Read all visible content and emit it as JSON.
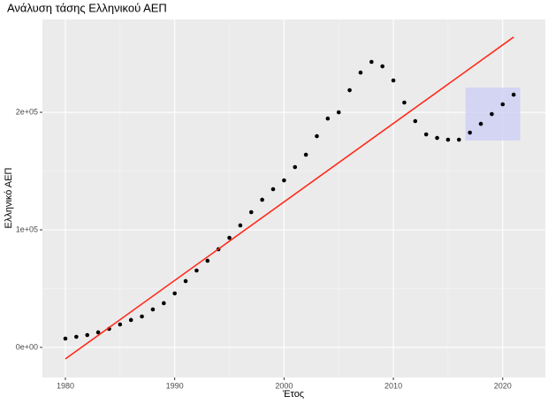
{
  "chart_data": {
    "type": "scatter",
    "title": "Ανάλυση τάσης Ελληνικού ΑΕΠ",
    "x_label": "Έτος",
    "y_label": "Ελληνικό ΑΕΠ",
    "x": [
      1980,
      1981,
      1982,
      1983,
      1984,
      1985,
      1986,
      1987,
      1988,
      1989,
      1990,
      1991,
      1992,
      1993,
      1994,
      1995,
      1996,
      1997,
      1998,
      1999,
      2000,
      2001,
      2002,
      2003,
      2004,
      2005,
      2006,
      2007,
      2008,
      2009,
      2010,
      2011,
      2012,
      2013,
      2014,
      2015,
      2016,
      2017,
      2018,
      2019,
      2020,
      2021
    ],
    "values": [
      7500,
      9000,
      10500,
      12800,
      15800,
      19500,
      23300,
      26300,
      32300,
      37600,
      45900,
      56400,
      65400,
      73700,
      83500,
      93200,
      103800,
      115000,
      125600,
      134600,
      142100,
      153400,
      163900,
      179700,
      194700,
      200000,
      218800,
      233800,
      242900,
      239100,
      227100,
      208300,
      192500,
      181200,
      178200,
      176700,
      176700,
      182700,
      190200,
      198500,
      206800,
      215000
    ],
    "color": "#000000",
    "trend": {
      "x": [
        1980,
        2021
      ],
      "values": [
        -9800,
        264000
      ],
      "color": "#ff2a1a"
    },
    "highlight": {
      "xmin": 2016.6,
      "xmax": 2021.6,
      "ymin": 176000,
      "ymax": 221000,
      "color": "#ccccf5"
    },
    "xlim": [
      1977.9,
      2023.9
    ],
    "ylim": [
      -25600,
      279000
    ],
    "xticks": [
      1980,
      1990,
      2000,
      2010,
      2020
    ],
    "yticks": [
      {
        "value": 0,
        "label": "0e+00"
      },
      {
        "value": 100000,
        "label": "1e+05"
      },
      {
        "value": 200000,
        "label": "2e+05"
      }
    ],
    "grid": true
  }
}
